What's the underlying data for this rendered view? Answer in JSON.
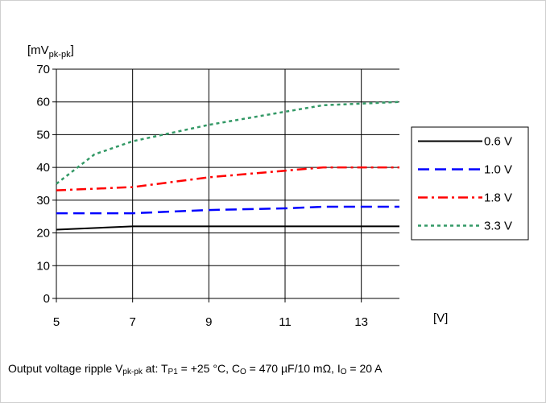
{
  "chart_data": {
    "type": "line",
    "title": "",
    "ylabel_main": "[mV",
    "ylabel_sub": "pk-pk",
    "ylabel_close": "]",
    "xlabel": "[V]",
    "x_ticks": [
      5,
      7,
      9,
      11,
      13
    ],
    "y_ticks": [
      0,
      10,
      20,
      30,
      40,
      50,
      60,
      70
    ],
    "xlim": [
      5,
      14
    ],
    "ylim": [
      0,
      70
    ],
    "grid": true,
    "legend_position": "right",
    "series": [
      {
        "name": "0.6 V",
        "color": "#000000",
        "dash": "solid",
        "x": [
          5,
          7,
          9,
          11,
          12,
          13,
          14
        ],
        "y": [
          21,
          22,
          22,
          22,
          22,
          22,
          22
        ]
      },
      {
        "name": "1.0 V",
        "color": "#0000ff",
        "dash": "dash",
        "x": [
          5,
          7,
          9,
          11,
          12,
          13,
          14
        ],
        "y": [
          26,
          26,
          27,
          27.5,
          28,
          28,
          28
        ]
      },
      {
        "name": "1.8 V",
        "color": "#ff0000",
        "dash": "dashdot",
        "x": [
          5,
          7,
          9,
          11,
          12,
          13,
          14
        ],
        "y": [
          33,
          34,
          37,
          39,
          40,
          40,
          40
        ]
      },
      {
        "name": "3.3 V",
        "color": "#339966",
        "dash": "dot",
        "x": [
          5,
          6,
          7,
          9,
          11,
          12,
          13,
          14
        ],
        "y": [
          35,
          44,
          48,
          53,
          57,
          59,
          59.5,
          60
        ]
      }
    ]
  },
  "caption": {
    "t1": "Output voltage ripple V",
    "s1": "pk-pk",
    "t2": " at: T",
    "s2": "P1",
    "t3": " = +25 °C, C",
    "s3": "O",
    "t4": " = 470 µF/10 mΩ, I",
    "s4": "O",
    "t5": " = 20 A"
  }
}
